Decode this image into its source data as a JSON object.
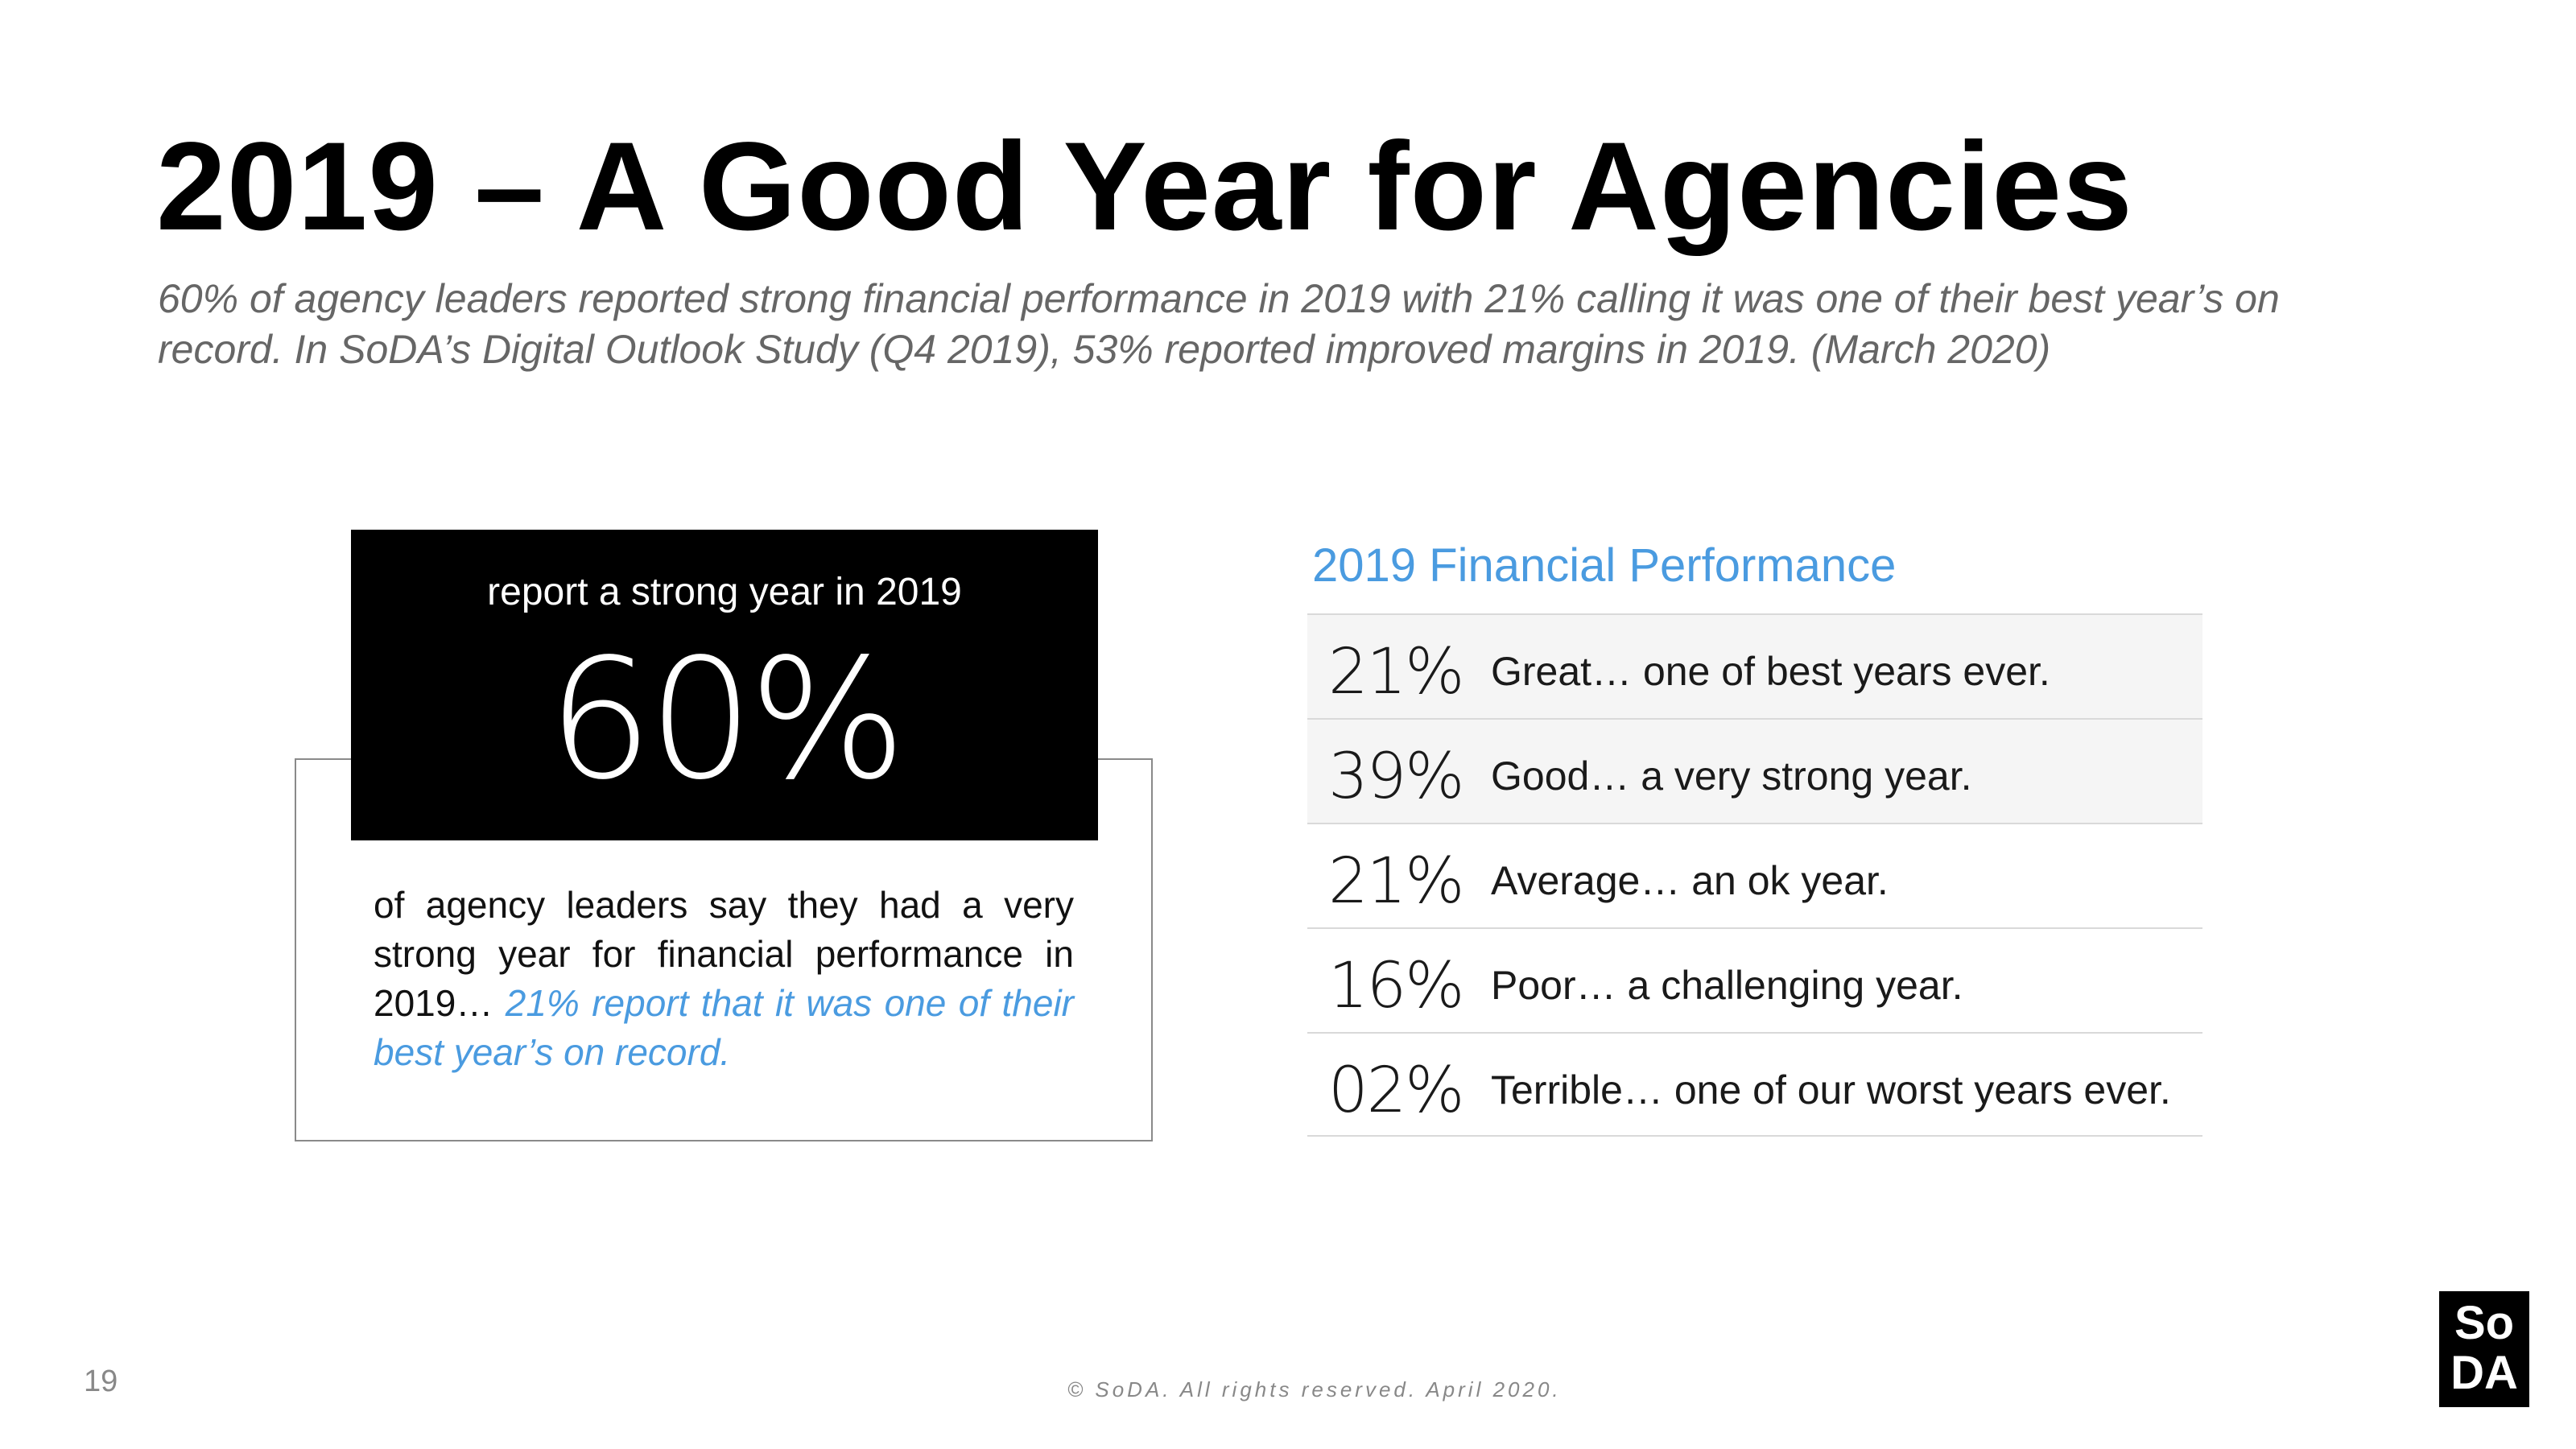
{
  "slide": {
    "title": "2019 – A Good Year for Agencies",
    "subtitle_line1": "60% of agency leaders reported strong financial performance in 2019 with 21% calling it was one of their best year’s on",
    "subtitle_line2": "record. In SoDA’s Digital Outlook Study (Q4 2019), 53% reported improved margins in 2019.  (March 2020)"
  },
  "callout": {
    "label": "report a strong year in 2019",
    "value": "60%",
    "body_plain": "of agency leaders say they had a very strong year for financial performance in 2019… ",
    "body_accent": "21% report that it was one of their best year’s on record",
    "body_end": "."
  },
  "performance": {
    "title": "2019 Financial Performance",
    "rows": [
      {
        "pct": "21%",
        "desc": "Great… one of best years ever."
      },
      {
        "pct": "39%",
        "desc": "Good… a very strong year."
      },
      {
        "pct": "21%",
        "desc": "Average… an ok year."
      },
      {
        "pct": "16%",
        "desc": "Poor… a challenging year."
      },
      {
        "pct": "02%",
        "desc": "Terrible… one of our worst years ever."
      }
    ]
  },
  "footer": {
    "page_number": "19",
    "copyright": "© SoDA. All rights reserved. April 2020.",
    "logo_line1": "So",
    "logo_line2": "DA"
  },
  "colors": {
    "accent": "#4a9be0",
    "callout_bg": "#000000",
    "row_shade": "#f5f5f5"
  }
}
